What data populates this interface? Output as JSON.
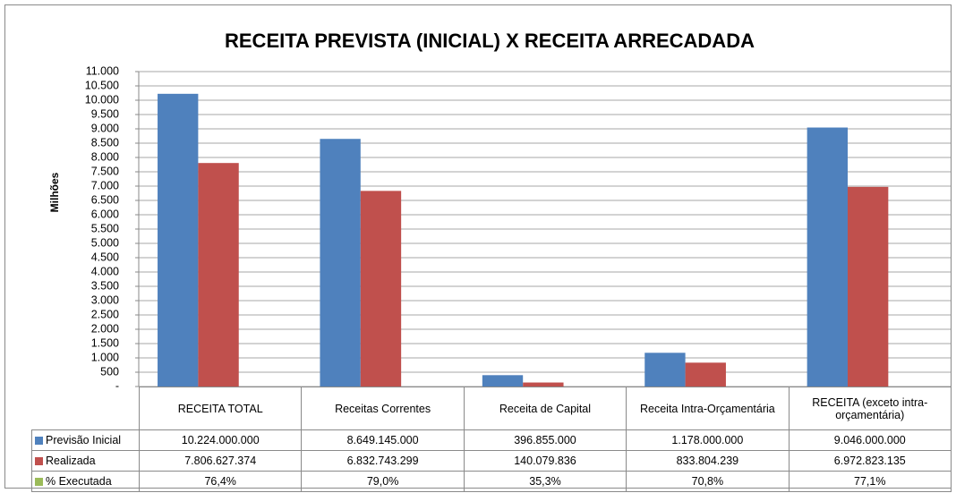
{
  "chart_data": {
    "type": "bar",
    "title": "RECEITA PREVISTA (INICIAL) X RECEITA ARRECADADA",
    "y_label": "Milhões",
    "categories": [
      "RECEITA TOTAL",
      "Receitas Correntes",
      "Receita de Capital",
      "Receita Intra-Orçamentária",
      "RECEITA (exceto intra-orçamentária)"
    ],
    "series": [
      {
        "name": "Previsão Inicial",
        "color": "#4f81bd",
        "values": [
          10224,
          8649.145,
          396.855,
          1178,
          9046
        ],
        "value_labels": [
          "10.224.000.000",
          "8.649.145.000",
          "396.855.000",
          "1.178.000.000",
          "9.046.000.000"
        ]
      },
      {
        "name": "Realizada",
        "color": "#c0504d",
        "values": [
          7806.627374,
          6832.743299,
          140.079836,
          833.804239,
          6972.823135
        ],
        "value_labels": [
          "7.806.627.374",
          "6.832.743.299",
          "140.079.836",
          "833.804.239",
          "6.972.823.135"
        ]
      },
      {
        "name": "% Executada",
        "color": "#9bbb59",
        "plotted": false,
        "values": [
          76.4,
          79.0,
          35.3,
          70.8,
          77.1
        ],
        "value_labels": [
          "76,4%",
          "79,0%",
          "35,3%",
          "70,8%",
          "77,1%"
        ]
      }
    ],
    "ylim": [
      0,
      11000
    ],
    "yticks": [
      {
        "value": 0,
        "label": "-"
      },
      500,
      {
        "value": 1000,
        "label": "1.000"
      },
      {
        "value": 1500,
        "label": "1.500"
      },
      {
        "value": 2000,
        "label": "2.000"
      },
      {
        "value": 2500,
        "label": "2.500"
      },
      {
        "value": 3000,
        "label": "3.000"
      },
      {
        "value": 3500,
        "label": "3.500"
      },
      {
        "value": 4000,
        "label": "4.000"
      },
      {
        "value": 4500,
        "label": "4.500"
      },
      {
        "value": 5000,
        "label": "5.000"
      },
      {
        "value": 5500,
        "label": "5.500"
      },
      {
        "value": 6000,
        "label": "6.000"
      },
      {
        "value": 6500,
        "label": "6.500"
      },
      {
        "value": 7000,
        "label": "7.000"
      },
      {
        "value": 7500,
        "label": "7.500"
      },
      {
        "value": 8000,
        "label": "8.000"
      },
      {
        "value": 8500,
        "label": "8.500"
      },
      {
        "value": 9000,
        "label": "9.000"
      },
      {
        "value": 9500,
        "label": "9.500"
      },
      {
        "value": 10000,
        "label": "10.000"
      },
      {
        "value": 10500,
        "label": "10.500"
      },
      {
        "value": 11000,
        "label": "11.000"
      }
    ],
    "grid": true
  }
}
